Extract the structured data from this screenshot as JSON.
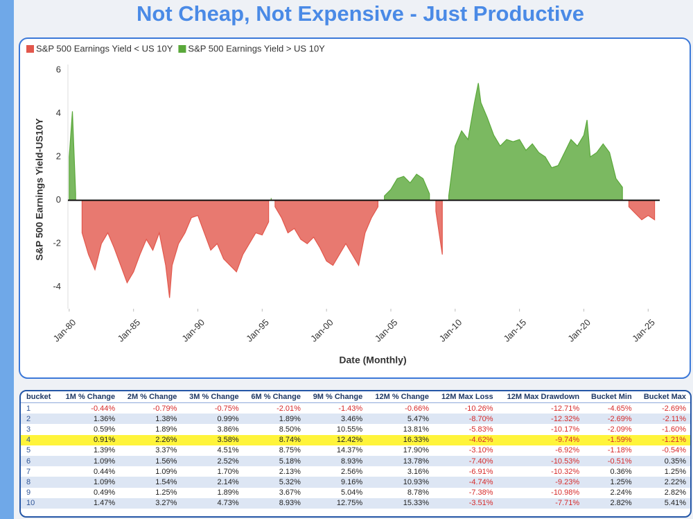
{
  "chart_data": {
    "type": "area",
    "title": "Not Cheap, Not Expensive - Just Productive",
    "x_label": "Date (Monthly)",
    "y_label": "S&P 500 Earnings Yield-US10Y",
    "x": [
      1980.0,
      1980.25,
      1980.5,
      1981.0,
      1981.5,
      1982.0,
      1982.5,
      1983.0,
      1983.5,
      1984.0,
      1984.5,
      1985.0,
      1985.5,
      1986.0,
      1986.5,
      1987.0,
      1987.5,
      1987.8,
      1988.0,
      1988.5,
      1989.0,
      1989.5,
      1990.0,
      1990.5,
      1991.0,
      1991.5,
      1992.0,
      1992.5,
      1993.0,
      1993.5,
      1994.0,
      1994.5,
      1995.0,
      1995.5,
      1995.7,
      1996.0,
      1996.5,
      1997.0,
      1997.5,
      1998.0,
      1998.5,
      1999.0,
      1999.5,
      2000.0,
      2000.5,
      2001.0,
      2001.5,
      2002.0,
      2002.5,
      2003.0,
      2003.5,
      2004.0,
      2004.5,
      2005.0,
      2005.5,
      2006.0,
      2006.5,
      2007.0,
      2007.5,
      2008.0,
      2008.5,
      2009.0,
      2009.5,
      2010.0,
      2010.5,
      2011.0,
      2011.5,
      2011.8,
      2012.0,
      2012.5,
      2013.0,
      2013.5,
      2014.0,
      2014.5,
      2015.0,
      2015.5,
      2016.0,
      2016.5,
      2017.0,
      2017.5,
      2018.0,
      2018.5,
      2019.0,
      2019.5,
      2020.0,
      2020.25,
      2020.5,
      2021.0,
      2021.5,
      2022.0,
      2022.5,
      2023.0,
      2023.5,
      2024.0,
      2024.5,
      2025.0,
      2025.5
    ],
    "series": [
      {
        "name": "S&P 500 Earnings Yield < US 10Y",
        "color": "#e2574c",
        "values": [
          null,
          null,
          null,
          -1.5,
          -2.5,
          -3.2,
          -2.0,
          -1.5,
          -2.2,
          -3.0,
          -3.8,
          -3.3,
          -2.5,
          -1.8,
          -2.3,
          -1.5,
          -3.0,
          -4.5,
          -3.0,
          -2.0,
          -1.5,
          -0.8,
          -0.7,
          -1.5,
          -2.3,
          -2.0,
          -2.7,
          -3.0,
          -3.3,
          -2.5,
          -2.0,
          -1.5,
          -1.6,
          -1.0,
          null,
          -0.3,
          -0.8,
          -1.5,
          -1.3,
          -1.8,
          -2.0,
          -1.7,
          -2.2,
          -2.8,
          -3.0,
          -2.5,
          -2.0,
          -2.5,
          -3.0,
          -1.5,
          -0.8,
          -0.3,
          null,
          null,
          null,
          null,
          null,
          null,
          null,
          null,
          -0.5,
          -2.5,
          null,
          null,
          null,
          null,
          null,
          null,
          null,
          null,
          null,
          null,
          null,
          null,
          null,
          null,
          null,
          null,
          null,
          null,
          null,
          null,
          null,
          null,
          null,
          null,
          null,
          null,
          null,
          null,
          null,
          null,
          -0.3,
          -0.6,
          -0.9,
          -0.7,
          -0.9
        ]
      },
      {
        "name": "S&P 500 Earnings Yield > US 10Y",
        "color": "#5aa83a",
        "values": [
          2.0,
          4.1,
          0.3,
          null,
          null,
          null,
          null,
          null,
          null,
          null,
          null,
          null,
          null,
          null,
          null,
          null,
          null,
          null,
          null,
          null,
          null,
          null,
          null,
          null,
          null,
          null,
          null,
          null,
          null,
          null,
          null,
          null,
          null,
          null,
          0.1,
          null,
          null,
          null,
          null,
          null,
          null,
          null,
          null,
          null,
          null,
          null,
          null,
          null,
          null,
          null,
          null,
          null,
          0.2,
          0.5,
          1.0,
          1.1,
          0.8,
          1.2,
          1.0,
          0.3,
          null,
          null,
          0.2,
          2.5,
          3.2,
          2.8,
          4.5,
          5.4,
          4.5,
          3.8,
          3.0,
          2.5,
          2.8,
          2.7,
          2.8,
          2.3,
          2.6,
          2.2,
          2.0,
          1.5,
          1.6,
          2.2,
          2.8,
          2.5,
          3.0,
          3.7,
          2.0,
          2.2,
          2.6,
          2.2,
          1.0,
          0.6,
          null,
          null,
          null,
          null,
          null
        ]
      }
    ],
    "xlim": [
      1979.9,
      2025.9
    ],
    "xticks": [
      {
        "value": 1980,
        "label": "Jan-80"
      },
      {
        "value": 1985,
        "label": "Jan-85"
      },
      {
        "value": 1990,
        "label": "Jan-90"
      },
      {
        "value": 1995,
        "label": "Jan-95"
      },
      {
        "value": 2000,
        "label": "Jan-00"
      },
      {
        "value": 2005,
        "label": "Jan-05"
      },
      {
        "value": 2010,
        "label": "Jan-10"
      },
      {
        "value": 2015,
        "label": "Jan-15"
      },
      {
        "value": 2020,
        "label": "Jan-20"
      },
      {
        "value": 2025,
        "label": "Jan-25"
      }
    ],
    "ylim": [
      -5,
      6
    ],
    "yticks": [
      -4,
      -2,
      0,
      2,
      4,
      6
    ],
    "grid": false,
    "legend": "top-left"
  },
  "table": {
    "header": [
      "bucket",
      "1M % Change",
      "2M % Change",
      "3M % Change",
      "6M % Change",
      "9M % Change",
      "12M % Change",
      "12M Max Loss",
      "12M Max Drawdown",
      "Bucket Min",
      "Bucket Max"
    ],
    "rows": [
      [
        "1",
        "-0.44%",
        "-0.79%",
        "-0.75%",
        "-2.01%",
        "-1.43%",
        "-0.66%",
        "-10.26%",
        "-12.71%",
        "-4.65%",
        "-2.69%"
      ],
      [
        "2",
        "1.36%",
        "1.38%",
        "0.99%",
        "1.89%",
        "3.46%",
        "5.47%",
        "-8.70%",
        "-12.32%",
        "-2.69%",
        "-2.11%"
      ],
      [
        "3",
        "0.59%",
        "1.89%",
        "3.86%",
        "8.50%",
        "10.55%",
        "13.81%",
        "-5.83%",
        "-10.17%",
        "-2.09%",
        "-1.60%"
      ],
      [
        "4",
        "0.91%",
        "2.26%",
        "3.58%",
        "8.74%",
        "12.42%",
        "16.33%",
        "-4.62%",
        "-9.74%",
        "-1.59%",
        "-1.21%"
      ],
      [
        "5",
        "1.39%",
        "3.37%",
        "4.51%",
        "8.75%",
        "14.37%",
        "17.90%",
        "-3.10%",
        "-6.92%",
        "-1.18%",
        "-0.54%"
      ],
      [
        "6",
        "1.09%",
        "1.56%",
        "2.52%",
        "5.18%",
        "8.93%",
        "13.78%",
        "-7.40%",
        "-10.53%",
        "-0.51%",
        "0.35%"
      ],
      [
        "7",
        "0.44%",
        "1.09%",
        "1.70%",
        "2.13%",
        "2.56%",
        "3.16%",
        "-6.91%",
        "-10.32%",
        "0.36%",
        "1.25%"
      ],
      [
        "8",
        "1.09%",
        "1.54%",
        "2.14%",
        "5.32%",
        "9.16%",
        "10.93%",
        "-4.74%",
        "-9.23%",
        "1.25%",
        "2.22%"
      ],
      [
        "9",
        "0.49%",
        "1.25%",
        "1.89%",
        "3.67%",
        "5.04%",
        "8.78%",
        "-7.38%",
        "-10.98%",
        "2.24%",
        "2.82%"
      ],
      [
        "10",
        "1.47%",
        "3.27%",
        "4.73%",
        "8.93%",
        "12.75%",
        "15.33%",
        "-3.51%",
        "-7.71%",
        "2.82%",
        "5.41%"
      ]
    ]
  }
}
